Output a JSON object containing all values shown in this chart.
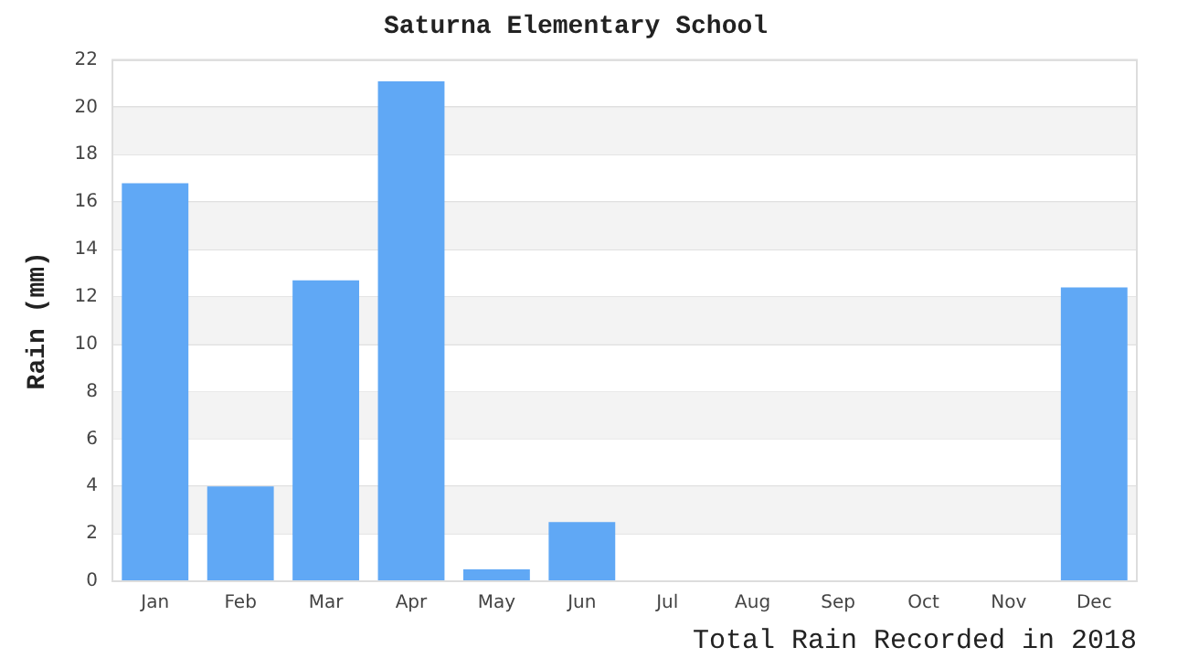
{
  "chart_data": {
    "type": "bar",
    "title": "Saturna Elementary School",
    "ylabel": "Rain (mm)",
    "annotations": [
      "Total Rain Recorded in 2018"
    ],
    "categories": [
      "Jan",
      "Feb",
      "Mar",
      "Apr",
      "May",
      "Jun",
      "Jul",
      "Aug",
      "Sep",
      "Oct",
      "Nov",
      "Dec"
    ],
    "values": [
      16.8,
      4.0,
      12.7,
      21.1,
      0.5,
      2.5,
      0,
      0,
      0,
      0,
      0,
      12.4
    ],
    "color": "#60a8f5",
    "ylim": [
      0,
      22
    ],
    "yticks": [
      0,
      2,
      4,
      6,
      8,
      10,
      12,
      14,
      16,
      18,
      20,
      22
    ],
    "grid": "y",
    "legend": false
  }
}
